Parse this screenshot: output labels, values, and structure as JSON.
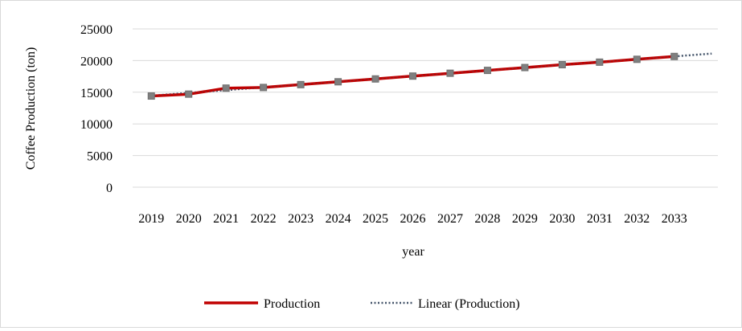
{
  "chart_data": {
    "type": "line",
    "title": "",
    "xlabel": "year",
    "ylabel": "Coffee Production (ton)",
    "categories": [
      "2019",
      "2020",
      "2021",
      "2022",
      "2023",
      "2024",
      "2025",
      "2026",
      "2027",
      "2028",
      "2029",
      "2030",
      "2031",
      "2032",
      "2033"
    ],
    "ylim": [
      0,
      25000
    ],
    "yticks": [
      "0",
      "5000",
      "10000",
      "15000",
      "20000",
      "25000"
    ],
    "grid": "horizontal",
    "legend_position": "bottom",
    "series": [
      {
        "name": "Production",
        "color": "#c00000",
        "marker": "square",
        "marker_color": "#7f7f7f",
        "values": [
          14400,
          14700,
          15650,
          15750,
          16200,
          16650,
          17100,
          17550,
          18000,
          18450,
          18900,
          19350,
          19750,
          20200,
          20650
        ]
      }
    ],
    "trendlines": [
      {
        "name": "Linear (Production)",
        "type": "linear",
        "style": "dotted",
        "color": "#44546a",
        "forward_periods": 1
      }
    ]
  }
}
